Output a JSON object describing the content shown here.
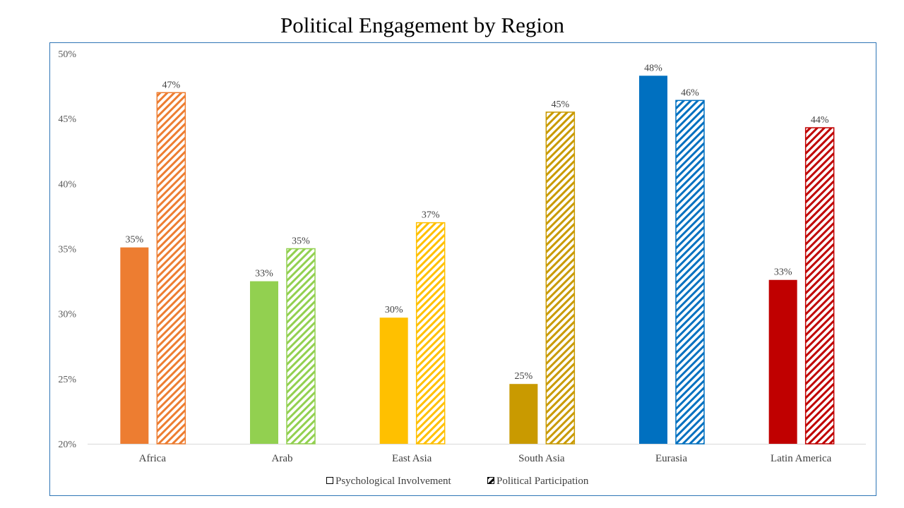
{
  "chart_data": {
    "type": "bar",
    "title": "Political Engagement by Region",
    "xlabel": "",
    "ylabel": "",
    "ylim": [
      0.2,
      0.5
    ],
    "yticks": [
      "20%",
      "25%",
      "30%",
      "35%",
      "40%",
      "45%",
      "50%"
    ],
    "grid": false,
    "legend_position": "bottom",
    "categories": [
      "Africa",
      "Arab",
      "East Asia",
      "South Asia",
      "Eurasia",
      "Latin America"
    ],
    "category_colors": [
      "#ED7D31",
      "#92D050",
      "#FFC000",
      "#C99A00",
      "#0070C0",
      "#C00000"
    ],
    "series": [
      {
        "name": "Psychological Involvement",
        "style": "solid",
        "values": [
          0.351,
          0.325,
          0.297,
          0.246,
          0.483,
          0.326
        ],
        "labels": [
          "35%",
          "33%",
          "30%",
          "25%",
          "48%",
          "33%"
        ]
      },
      {
        "name": "Political Participation",
        "style": "hatched",
        "values": [
          0.47,
          0.35,
          0.37,
          0.455,
          0.464,
          0.443
        ],
        "labels": [
          "47%",
          "35%",
          "37%",
          "45%",
          "46%",
          "44%"
        ]
      }
    ],
    "frame_color": "#2E75B6"
  }
}
